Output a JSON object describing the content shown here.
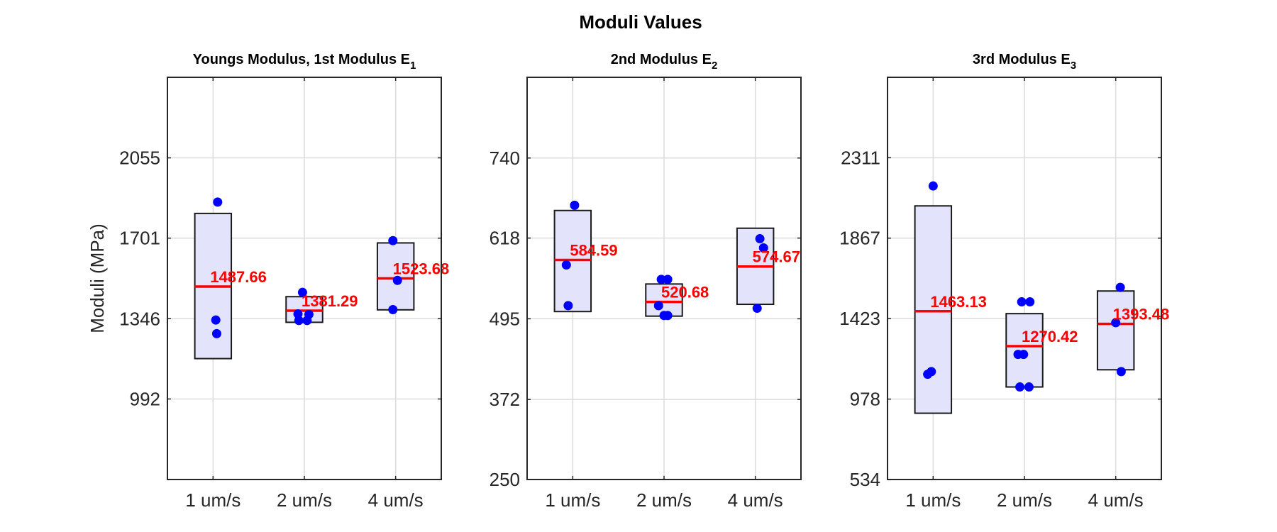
{
  "figure_title": "Moduli Values",
  "colors": {
    "box_fill": "#e3e3fb",
    "box_edge": "#1a1a1a",
    "median": "#ff0000",
    "points": "#0000ff",
    "grid": "#dcdcdc",
    "axes": "#262626"
  },
  "chart_data": [
    {
      "type": "box",
      "title": "Youngs Modulus, 1st Modulus E",
      "title_sub": "1",
      "ylabel": "Moduli (MPa)",
      "xlabel": "",
      "categories": [
        "1 um/s",
        "2 um/s",
        "4 um/s"
      ],
      "ylim": [
        637,
        2410
      ],
      "yticks": [
        2055,
        1701,
        1346,
        992
      ],
      "grid": true,
      "boxes": [
        {
          "category": "1 um/s",
          "low": 1170,
          "high": 1810,
          "median": 1487.66,
          "label": "1487.66",
          "points": [
            {
              "x": 1.05,
              "y": 1860
            },
            {
              "x": 1.03,
              "y": 1340
            },
            {
              "x": 1.04,
              "y": 1280
            }
          ]
        },
        {
          "category": "2 um/s",
          "low": 1330,
          "high": 1443,
          "median": 1381.29,
          "label": "1381.29",
          "points": [
            {
              "x": 1.98,
              "y": 1462
            },
            {
              "x": 1.93,
              "y": 1367
            },
            {
              "x": 2.05,
              "y": 1365
            },
            {
              "x": 1.94,
              "y": 1338
            },
            {
              "x": 2.03,
              "y": 1338
            }
          ]
        },
        {
          "category": "4 um/s",
          "low": 1385,
          "high": 1680,
          "median": 1523.68,
          "label": "1523.68",
          "points": [
            {
              "x": 3.97,
              "y": 1690
            },
            {
              "x": 4.02,
              "y": 1515
            },
            {
              "x": 3.97,
              "y": 1386
            }
          ]
        }
      ]
    },
    {
      "type": "box",
      "title": "2nd Modulus E",
      "title_sub": "2",
      "ylabel": "",
      "xlabel": "",
      "categories": [
        "1 um/s",
        "2 um/s",
        "4 um/s"
      ],
      "ylim": [
        250,
        863
      ],
      "yticks": [
        740,
        618,
        495,
        372,
        250
      ],
      "grid": true,
      "boxes": [
        {
          "category": "1 um/s",
          "low": 506,
          "high": 660,
          "median": 584.59,
          "label": "584.59",
          "points": [
            {
              "x": 1.02,
              "y": 668
            },
            {
              "x": 0.93,
              "y": 577
            },
            {
              "x": 0.95,
              "y": 515
            }
          ]
        },
        {
          "category": "2 um/s",
          "low": 499,
          "high": 548,
          "median": 520.68,
          "label": "520.68",
          "points": [
            {
              "x": 1.97,
              "y": 555
            },
            {
              "x": 2.04,
              "y": 555
            },
            {
              "x": 1.94,
              "y": 515
            },
            {
              "x": 2.0,
              "y": 500
            },
            {
              "x": 2.04,
              "y": 500
            }
          ]
        },
        {
          "category": "4 um/s",
          "low": 517,
          "high": 633,
          "median": 574.67,
          "label": "574.67",
          "points": [
            {
              "x": 4.05,
              "y": 617
            },
            {
              "x": 4.09,
              "y": 603
            },
            {
              "x": 4.02,
              "y": 511
            }
          ]
        }
      ]
    },
    {
      "type": "box",
      "title": "3rd Modulus E",
      "title_sub": "3",
      "ylabel": "",
      "xlabel": "",
      "categories": [
        "1 um/s",
        "2 um/s",
        "4 um/s"
      ],
      "ylim": [
        534,
        2755
      ],
      "yticks": [
        2311,
        1867,
        1423,
        978,
        534
      ],
      "grid": true,
      "boxes": [
        {
          "category": "1 um/s",
          "low": 900,
          "high": 2045,
          "median": 1463.13,
          "label": "1463.13",
          "points": [
            {
              "x": 1.0,
              "y": 2155
            },
            {
              "x": 0.98,
              "y": 1130
            },
            {
              "x": 0.94,
              "y": 1115
            }
          ]
        },
        {
          "category": "2 um/s",
          "low": 1045,
          "high": 1450,
          "median": 1270.42,
          "label": "1270.42",
          "points": [
            {
              "x": 1.97,
              "y": 1515
            },
            {
              "x": 2.06,
              "y": 1515
            },
            {
              "x": 1.93,
              "y": 1225
            },
            {
              "x": 1.99,
              "y": 1225
            },
            {
              "x": 1.95,
              "y": 1045
            },
            {
              "x": 2.05,
              "y": 1045
            }
          ]
        },
        {
          "category": "4 um/s",
          "low": 1140,
          "high": 1575,
          "median": 1393.48,
          "label": "1393.48",
          "points": [
            {
              "x": 4.05,
              "y": 1595
            },
            {
              "x": 4.0,
              "y": 1400
            },
            {
              "x": 4.06,
              "y": 1130
            }
          ]
        }
      ]
    }
  ]
}
